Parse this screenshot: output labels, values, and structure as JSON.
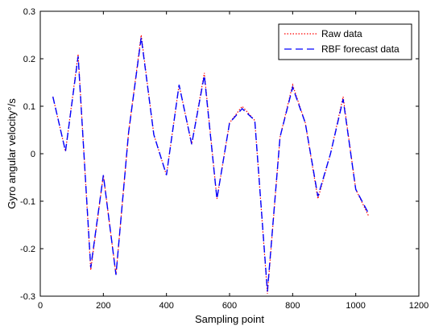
{
  "chart_data": {
    "type": "line",
    "xlabel": "Sampling point",
    "ylabel": "Gyro angular velocity°/s",
    "xlim": [
      0,
      1200
    ],
    "ylim": [
      -0.3,
      0.3
    ],
    "x_ticks": [
      0,
      200,
      400,
      600,
      800,
      1000,
      1200
    ],
    "y_ticks": [
      -0.3,
      -0.2,
      -0.1,
      0,
      0.1,
      0.2,
      0.3
    ],
    "x_tick_labels": [
      "0",
      "200",
      "400",
      "600",
      "800",
      "1000",
      "1200"
    ],
    "y_tick_labels": [
      "-0.3",
      "-0.2",
      "-0.1",
      "0",
      "0.1",
      "0.2",
      "0.3"
    ],
    "legend_position": "top-right",
    "x": [
      40,
      80,
      120,
      160,
      200,
      240,
      280,
      320,
      360,
      400,
      440,
      480,
      520,
      560,
      600,
      640,
      680,
      720,
      760,
      800,
      840,
      880,
      920,
      960,
      1000,
      1040
    ],
    "series": [
      {
        "name": "Raw data",
        "color": "#ff0000",
        "style": "dotted",
        "values": [
          0.12,
          0.005,
          0.21,
          -0.245,
          -0.045,
          -0.255,
          0.045,
          0.25,
          0.04,
          -0.045,
          0.145,
          0.02,
          0.17,
          -0.095,
          0.065,
          0.1,
          0.07,
          -0.295,
          0.035,
          0.145,
          0.065,
          -0.095,
          0.0,
          0.12,
          -0.075,
          -0.13
        ]
      },
      {
        "name": "RBF forecast data",
        "color": "#0000ff",
        "style": "dashed",
        "values": [
          0.12,
          0.005,
          0.205,
          -0.24,
          -0.045,
          -0.255,
          0.045,
          0.245,
          0.04,
          -0.045,
          0.145,
          0.02,
          0.165,
          -0.095,
          0.065,
          0.095,
          0.07,
          -0.29,
          0.035,
          0.14,
          0.065,
          -0.09,
          0.0,
          0.115,
          -0.075,
          -0.125
        ]
      }
    ]
  }
}
